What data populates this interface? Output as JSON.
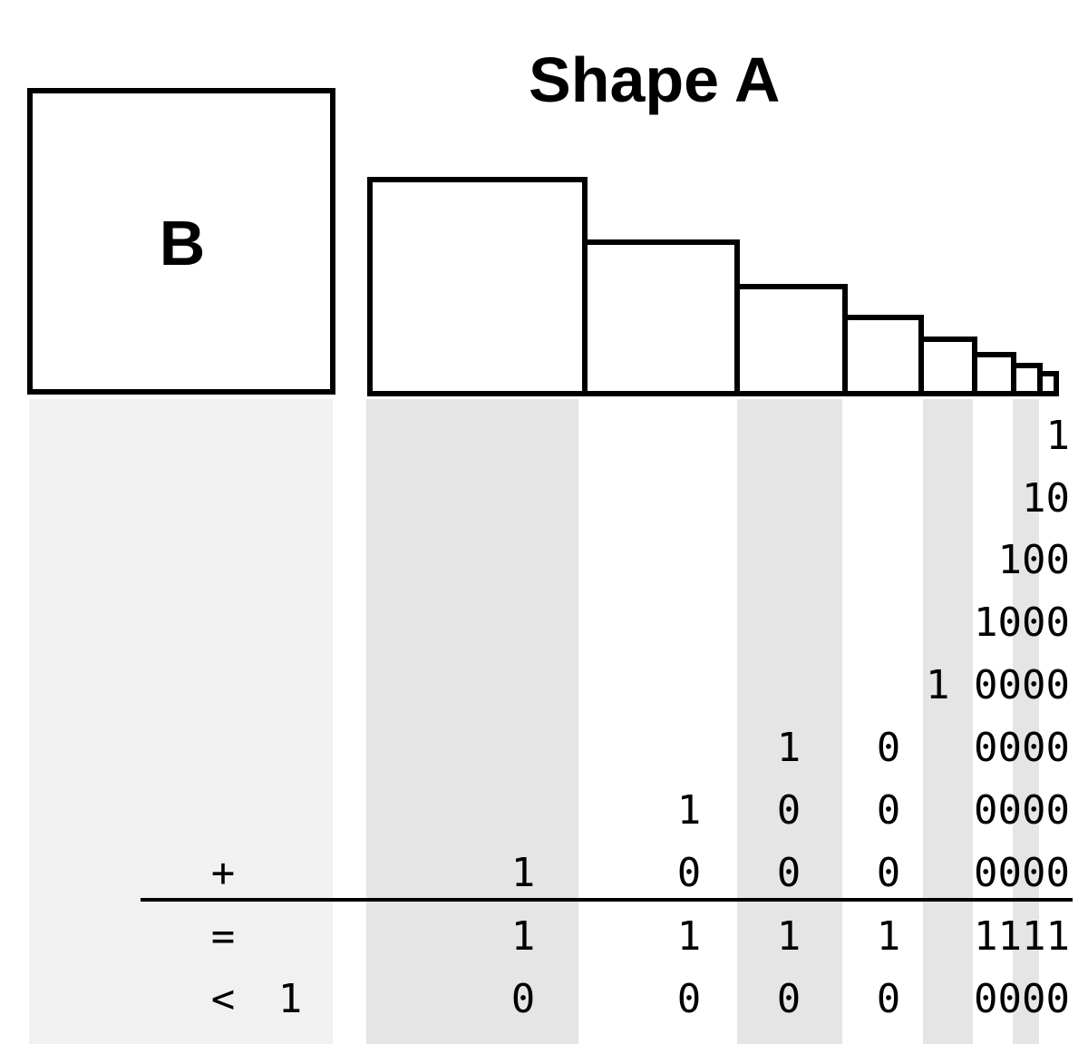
{
  "title": "Shape A",
  "square_label": "B",
  "addends": [
    "1",
    "10",
    "100",
    "1000",
    "1 0000",
    "1 0 0000",
    "1 0 0 0000"
  ],
  "plus_row": {
    "operator": "+",
    "digits": [
      "1",
      "0",
      "0",
      "0",
      "0000"
    ]
  },
  "sum_row": {
    "operator": "=",
    "digits": [
      "1",
      "1",
      "1",
      "1",
      "1111"
    ]
  },
  "less_row": {
    "operator": "<",
    "value": "1",
    "digits": [
      "0",
      "0",
      "0",
      "0",
      "0000"
    ]
  },
  "colors": {
    "line": "#000000",
    "band_light": "#f1f1f1",
    "band_dark": "#e5e5e5",
    "background": "#ffffff"
  }
}
